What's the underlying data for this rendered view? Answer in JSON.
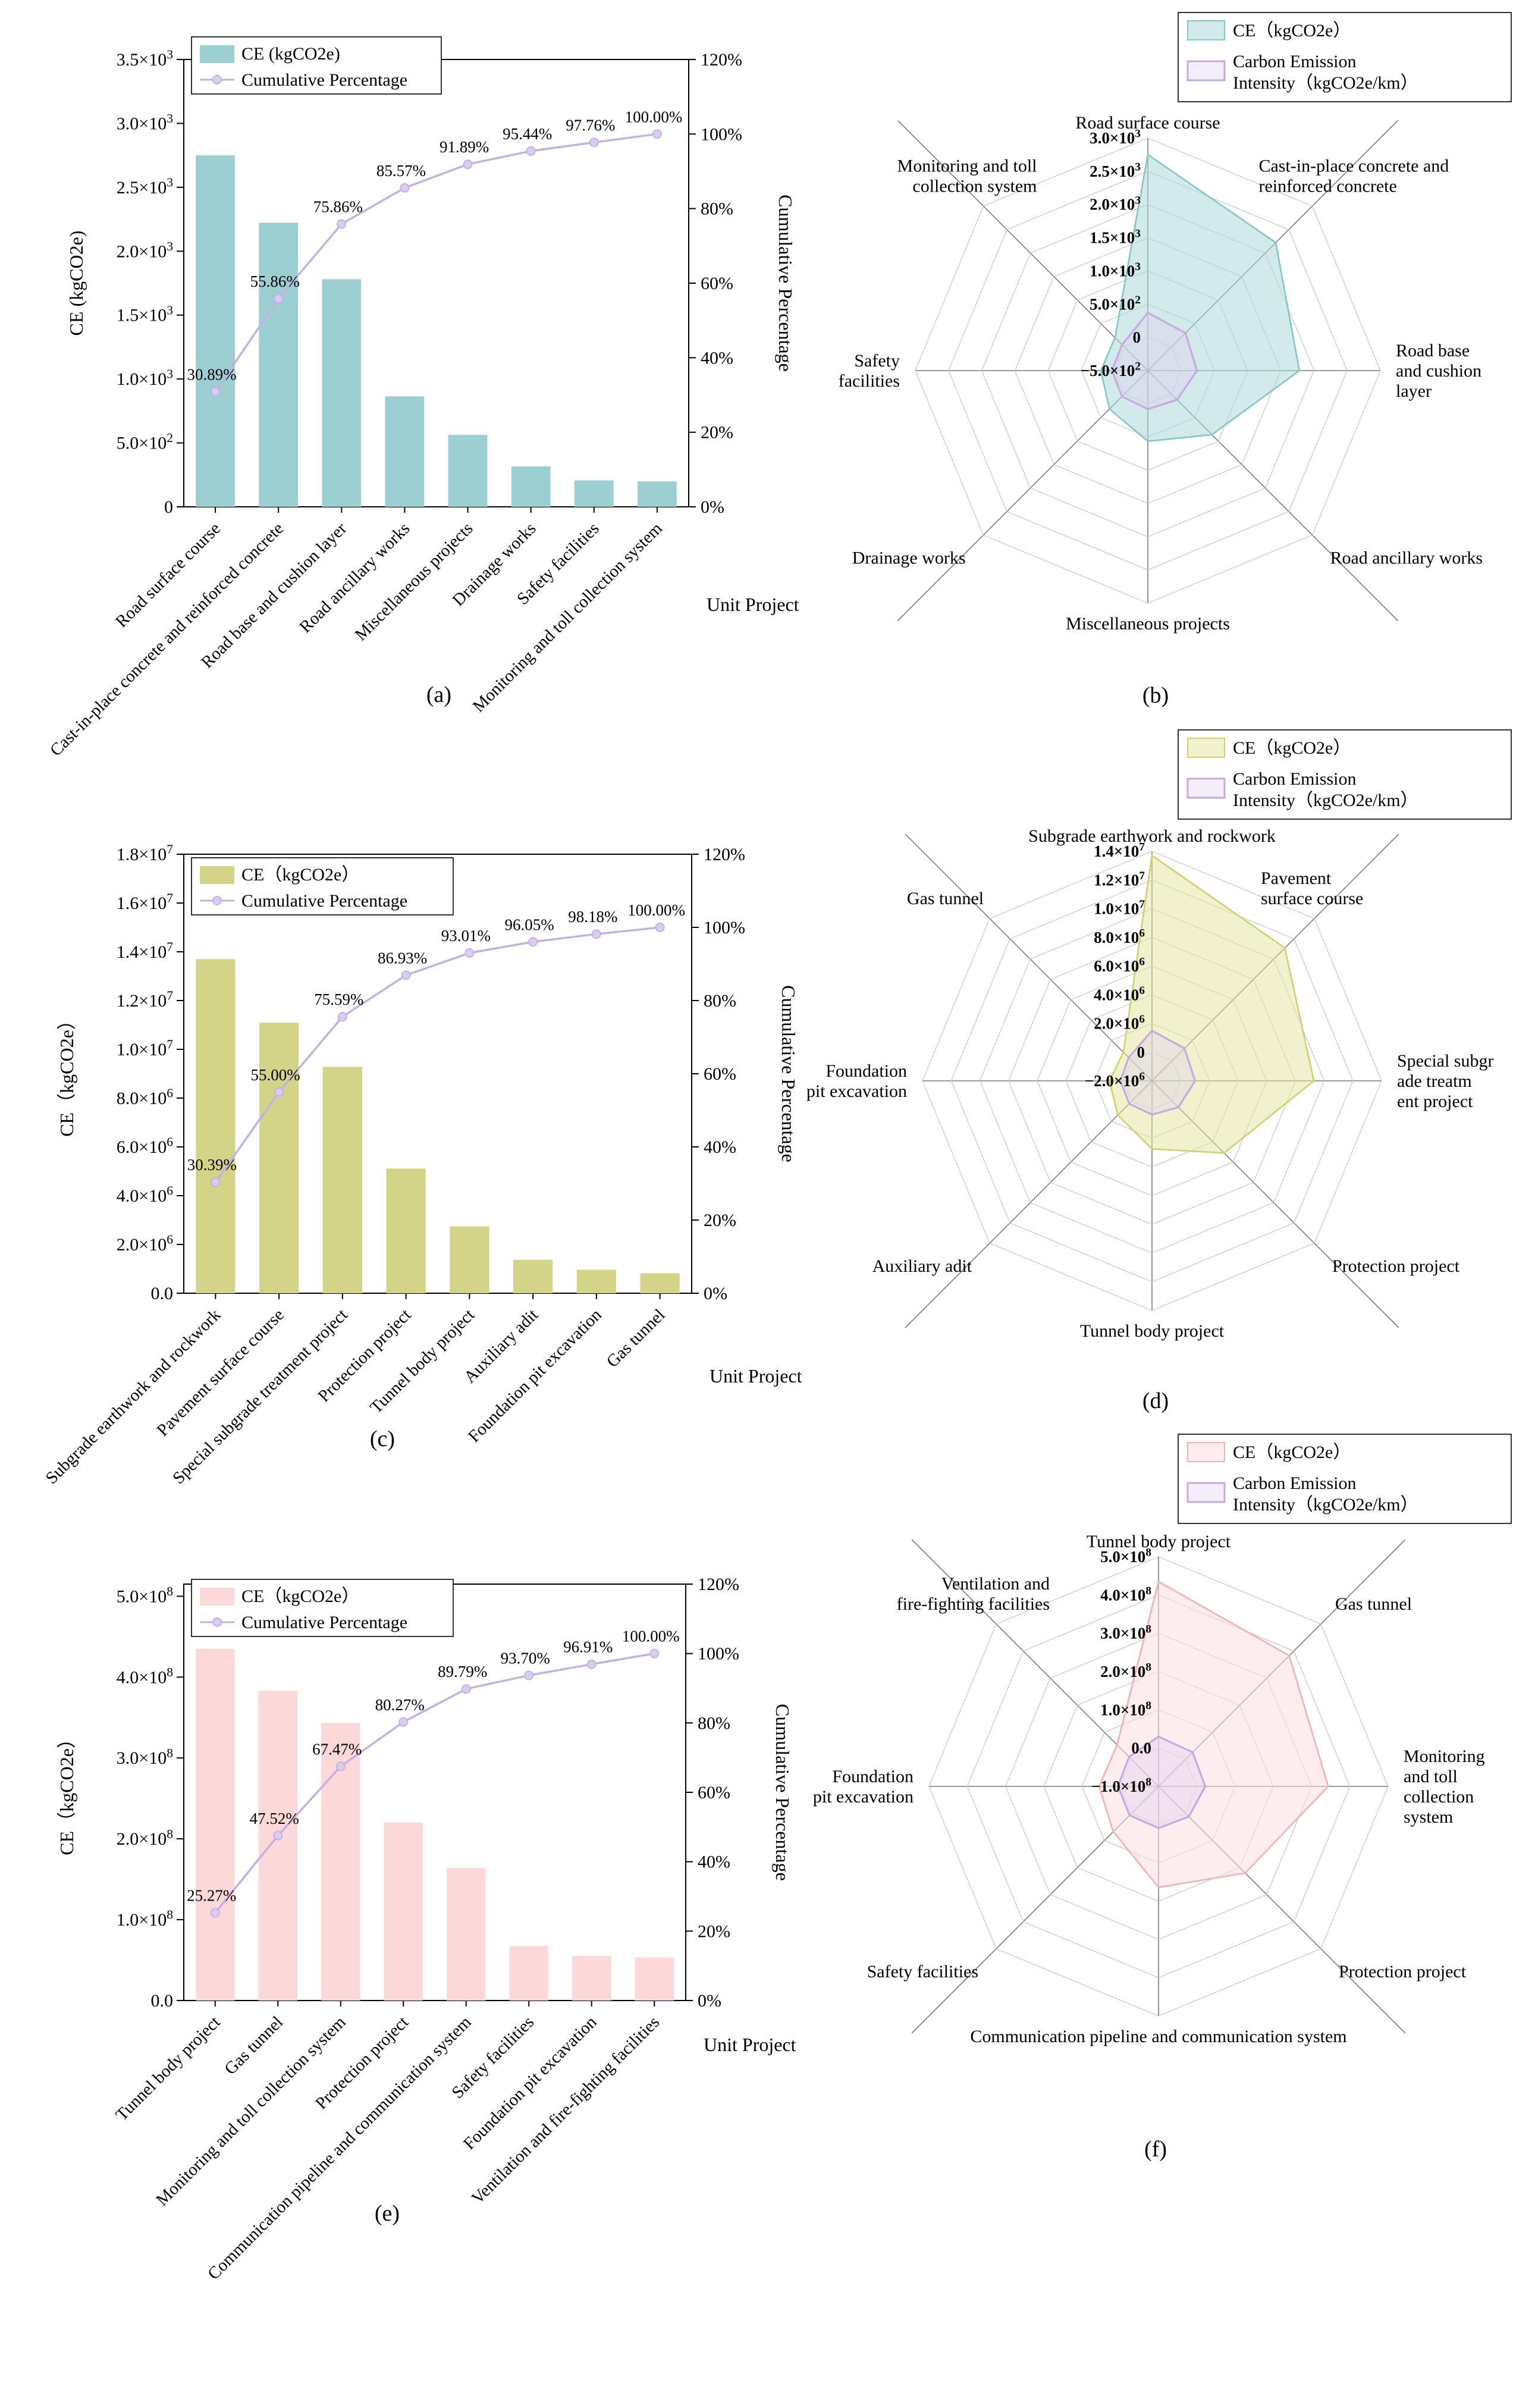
{
  "figure": {
    "panels": {
      "a": "(a)",
      "b": "(b)",
      "c": "(c)",
      "d": "(d)",
      "e": "(e)",
      "f": "(f)"
    }
  },
  "chart_data": [
    {
      "id": "a",
      "type": "bar",
      "subtype": "pareto",
      "panel": "(a)",
      "xlabel": "Unit Project",
      "ylabel": "CE (kgCO2e)",
      "ylabel_right": "Cumulative Percentage",
      "ylim": [
        0,
        3500
      ],
      "yticks": [
        0,
        500,
        1000,
        1500,
        2000,
        2500,
        3000,
        3500
      ],
      "ytick_labels": [
        "0",
        "5.0×10^2",
        "1.0×10^3",
        "1.5×10^3",
        "2.0×10^3",
        "2.5×10^3",
        "3.0×10^3",
        "3.5×10^3"
      ],
      "ylim_right": [
        0,
        120
      ],
      "yticks_right": [
        0,
        20,
        40,
        60,
        80,
        100,
        120
      ],
      "ytick_labels_right": [
        "0%",
        "20%",
        "40%",
        "60%",
        "80%",
        "100%",
        "120%"
      ],
      "categories": [
        "Road surface course",
        "Cast-in-place concrete and reinforced concrete",
        "Road base and cushion layer",
        "Road ancillary works",
        "Miscellaneous projects",
        "Drainage works",
        "Safety facilities",
        "Monitoring and toll collection system"
      ],
      "series": [
        {
          "name": "CE (kgCO2e)",
          "type": "bar",
          "color": "#9ccfd1",
          "values": [
            2750,
            2223,
            1781,
            864,
            563,
            316,
            207,
            199
          ]
        },
        {
          "name": "Cumulative Percentage",
          "type": "line",
          "color": "#c3b1e1",
          "marker_fill": "#dbcdf2",
          "values": [
            30.89,
            55.86,
            75.86,
            85.57,
            91.89,
            95.44,
            97.76,
            100.0
          ],
          "labels": [
            "30.89%",
            "55.86%",
            "75.86%",
            "85.57%",
            "91.89%",
            "95.44%",
            "97.76%",
            "100.00%"
          ]
        }
      ]
    },
    {
      "id": "b",
      "type": "radar",
      "panel": "(b)",
      "rlim": [
        -500,
        3000
      ],
      "rticks": [
        -500,
        0,
        500,
        1000,
        1500,
        2000,
        2500,
        3000
      ],
      "rtick_labels": [
        "−5.0×10^2",
        "0",
        "5.0×10^2",
        "1.0×10^3",
        "1.5×10^3",
        "2.0×10^3",
        "2.5×10^3",
        "3.0×10^3"
      ],
      "axes": [
        [
          "Road surface course"
        ],
        [
          "Cast-in-place concrete and",
          "reinforced concrete"
        ],
        [
          "Road base",
          "and cushion",
          "layer"
        ],
        [
          "Road ancillary works"
        ],
        [
          "Miscellaneous projects"
        ],
        [
          "Drainage works"
        ],
        [
          "Safety",
          "facilities"
        ],
        [
          "Monitoring and toll",
          "collection system"
        ]
      ],
      "series": [
        {
          "name": "CE（kgCO2e）",
          "stroke": "#82c7c5",
          "fill": "rgba(173,216,215,0.55)",
          "values": [
            2750,
            2223,
            1781,
            864,
            563,
            316,
            207,
            199
          ]
        },
        {
          "name": "Carbon Emission Intensity（kgCO2e/km）",
          "name_lines": [
            "Carbon Emission",
            "Intensity（kgCO2e/km）"
          ],
          "stroke": "#c7a9e2",
          "fill": "rgba(226,209,243,0.40)",
          "values": [
            370,
            300,
            240,
            120,
            80,
            50,
            40,
            50
          ]
        }
      ]
    },
    {
      "id": "c",
      "type": "bar",
      "subtype": "pareto",
      "panel": "(c)",
      "xlabel": "Unit Project",
      "ylabel": "CE（kgCO2e）",
      "ylabel_right": "Cumulative Percentage",
      "ylim": [
        0,
        18000000
      ],
      "yticks": [
        0,
        2000000,
        4000000,
        6000000,
        8000000,
        10000000,
        12000000,
        14000000,
        16000000,
        18000000
      ],
      "ytick_labels": [
        "0.0",
        "2.0×10^6",
        "4.0×10^6",
        "6.0×10^6",
        "8.0×10^6",
        "1.0×10^7",
        "1.2×10^7",
        "1.4×10^7",
        "1.6×10^7",
        "1.8×10^7"
      ],
      "ylim_right": [
        0,
        120
      ],
      "yticks_right": [
        0,
        20,
        40,
        60,
        80,
        100,
        120
      ],
      "ytick_labels_right": [
        "0%",
        "20%",
        "40%",
        "60%",
        "80%",
        "100%",
        "120%"
      ],
      "categories": [
        "Subgrade earthwork and rockwork",
        "Pavement surface course",
        "Special subgrade treatment project",
        "Protection project",
        "Tunnel body project",
        "Auxiliary adit",
        "Foundation pit excavation",
        "Gas tunnel"
      ],
      "series": [
        {
          "name": "CE（kgCO2e）",
          "type": "bar",
          "color": "#d4d488",
          "values": [
            13700000,
            11093000,
            9280000,
            5112000,
            2741000,
            1370000,
            960000,
            820000
          ]
        },
        {
          "name": "Cumulative Percentage",
          "type": "line",
          "color": "#c3b1e1",
          "marker_fill": "#dbcdf2",
          "values": [
            30.39,
            55.0,
            75.59,
            86.93,
            93.01,
            96.05,
            98.18,
            100.0
          ],
          "labels": [
            "30.39%",
            "55.00%",
            "75.59%",
            "86.93%",
            "93.01%",
            "96.05%",
            "98.18%",
            "100.00%"
          ]
        }
      ]
    },
    {
      "id": "d",
      "type": "radar",
      "panel": "(d)",
      "rlim": [
        -2000000,
        14000000
      ],
      "rticks": [
        -2000000,
        0,
        2000000,
        4000000,
        6000000,
        8000000,
        10000000,
        12000000,
        14000000
      ],
      "rtick_labels": [
        "−2.0×10^6",
        "0",
        "2.0×10^6",
        "4.0×10^6",
        "6.0×10^6",
        "8.0×10^6",
        "1.0×10^7",
        "1.2×10^7",
        "1.4×10^7"
      ],
      "axes": [
        [
          "Subgrade earthwork and rockwork"
        ],
        [
          "Pavement",
          "surface course"
        ],
        [
          "Special subgr",
          "ade treatm",
          "ent project"
        ],
        [
          "Protection project"
        ],
        [
          "Tunnel body project"
        ],
        [
          "Auxiliary adit"
        ],
        [
          "Foundation",
          "pit excavation"
        ],
        [
          "Gas tunnel"
        ]
      ],
      "series": [
        {
          "name": "CE（kgCO2e）",
          "stroke": "#cfd06e",
          "fill": "rgba(228,229,155,0.50)",
          "values": [
            13700000,
            11093000,
            9280000,
            5112000,
            2741000,
            1370000,
            960000,
            820000
          ]
        },
        {
          "name": "Carbon Emission Intensity（kgCO2e/km）",
          "name_lines": [
            "Carbon Emission",
            "Intensity（kgCO2e/km）"
          ],
          "stroke": "#c7a9e2",
          "fill": "rgba(226,209,243,0.40)",
          "values": [
            1500000,
            1200000,
            1000000,
            600000,
            350000,
            250000,
            200000,
            300000
          ]
        }
      ]
    },
    {
      "id": "e",
      "type": "bar",
      "subtype": "pareto",
      "panel": "(e)",
      "xlabel": "Unit Project",
      "ylabel": "CE（kgCO2e）",
      "ylabel_right": "Cumulative Percentage",
      "ylim": [
        0,
        515000000
      ],
      "yticks": [
        0,
        100000000,
        200000000,
        300000000,
        400000000,
        500000000
      ],
      "ytick_labels": [
        "0.0",
        "1.0×10^8",
        "2.0×10^8",
        "3.0×10^8",
        "4.0×10^8",
        "5.0×10^8"
      ],
      "ylim_right": [
        0,
        120
      ],
      "yticks_right": [
        0,
        20,
        40,
        60,
        80,
        100,
        120
      ],
      "ytick_labels_right": [
        "0%",
        "20%",
        "40%",
        "60%",
        "80%",
        "100%",
        "120%"
      ],
      "categories": [
        "Tunnel body project",
        "Gas tunnel",
        "Monitoring and toll collection system",
        "Protection project",
        "Communication pipeline and communication system",
        "Safety facilities",
        "Foundation pit excavation",
        "Ventilation and fire-fighting facilities"
      ],
      "series": [
        {
          "name": "CE（kgCO2e）",
          "type": "bar",
          "color": "#fdd8d9",
          "values": [
            435000000,
            383100000,
            343400000,
            220300000,
            163900000,
            67300000,
            55300000,
            53200000
          ]
        },
        {
          "name": "Cumulative Percentage",
          "type": "line",
          "color": "#c3b1e1",
          "marker_fill": "#dbcdf2",
          "values": [
            25.27,
            47.52,
            67.47,
            80.27,
            89.79,
            93.7,
            96.91,
            100.0
          ],
          "labels": [
            "25.27%",
            "47.52%",
            "67.47%",
            "80.27%",
            "89.79%",
            "93.70%",
            "96.91%",
            "100.00%"
          ]
        }
      ]
    },
    {
      "id": "f",
      "type": "radar",
      "panel": "(f)",
      "rlim": [
        -100000000,
        500000000
      ],
      "rticks": [
        -100000000,
        0,
        100000000,
        200000000,
        300000000,
        400000000,
        500000000
      ],
      "rtick_labels": [
        "−1.0×10^8",
        "0.0",
        "1.0×10^8",
        "2.0×10^8",
        "3.0×10^8",
        "4.0×10^8",
        "5.0×10^8"
      ],
      "axes": [
        [
          "Tunnel body project"
        ],
        [
          "Gas tunnel"
        ],
        [
          "Monitoring",
          "and toll",
          "collection",
          "system"
        ],
        [
          "Protection project"
        ],
        [
          "Communication pipeline and communication system"
        ],
        [
          "Safety facilities"
        ],
        [
          "Foundation",
          "pit excavation"
        ],
        [
          "Ventilation and",
          "fire-fighting facilities"
        ]
      ],
      "series": [
        {
          "name": "CE（kgCO2e）",
          "stroke": "#f4b0b4",
          "fill": "rgba(253,222,224,0.55)",
          "values": [
            435000000,
            383100000,
            343400000,
            220300000,
            163900000,
            67300000,
            55300000,
            53200000
          ]
        },
        {
          "name": "Carbon Emission Intensity（kgCO2e/km）",
          "name_lines": [
            "Carbon Emission",
            "Intensity（kgCO2e/km）"
          ],
          "stroke": "#c7a9e2",
          "fill": "rgba(226,209,243,0.40)",
          "values": [
            30000000,
            26000000,
            22000000,
            12000000,
            9000000,
            7000000,
            6000000,
            9000000
          ]
        }
      ]
    }
  ]
}
